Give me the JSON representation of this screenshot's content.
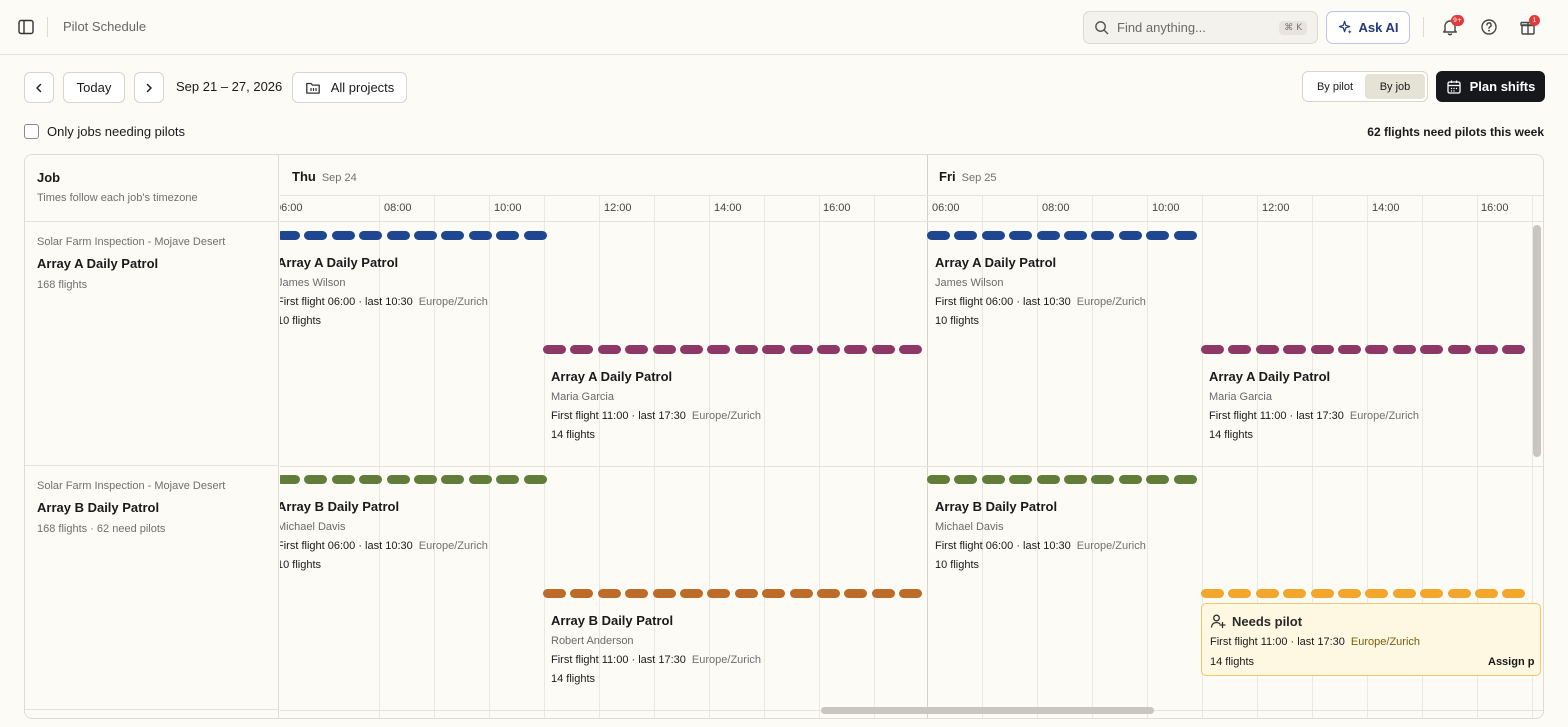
{
  "header": {
    "app_title": "Pilot Schedule",
    "search_placeholder": "Find anything...",
    "search_shortcut": "⌘ K",
    "ask_ai_label": "Ask AI",
    "notifications_badge": "9+",
    "gifts_badge": "1",
    "icons": [
      "sidebar-icon",
      "search-icon",
      "sparkle-icon",
      "bell-icon",
      "help-icon",
      "gift-icon"
    ]
  },
  "toolbar": {
    "today_label": "Today",
    "date_range": "Sep 21 – 27, 2026",
    "projects_label": "All projects",
    "view_by_pilot": "By pilot",
    "view_by_job": "By job",
    "active_view": "By job",
    "plan_shifts_label": "Plan shifts",
    "filter_label": "Only jobs needing pilots",
    "filter_checked": false,
    "need_pilots_summary": "62 flights need pilots this week"
  },
  "grid": {
    "job_column_title": "Job",
    "job_column_subtitle": "Times follow each job's timezone",
    "days": [
      {
        "name": "Thu",
        "date": "Sep 24"
      },
      {
        "name": "Fri",
        "date": "Sep 25"
      }
    ],
    "hours": [
      "06:00",
      "08:00",
      "10:00",
      "12:00",
      "14:00",
      "16:00"
    ],
    "jobs": [
      {
        "project": "Solar Farm Inspection - Mojave Desert",
        "name": "Array A Daily Patrol",
        "summary": "168 flights",
        "shifts": [
          {
            "title": "Array A Daily Patrol",
            "pilot": "James Wilson",
            "times": "First flight 06:00 · last 10:30",
            "timezone": "Europe/Zurich",
            "flights": "10 flights",
            "color": "#1f4690"
          },
          {
            "title": "Array A Daily Patrol",
            "pilot": "Maria Garcia",
            "times": "First flight 11:00 · last 17:30",
            "timezone": "Europe/Zurich",
            "flights": "14 flights",
            "color": "#8e3867"
          },
          {
            "title": "Array A Daily Patrol",
            "pilot": "James Wilson",
            "times": "First flight 06:00 · last 10:30",
            "timezone": "Europe/Zurich",
            "flights": "10 flights",
            "color": "#1f4690"
          },
          {
            "title": "Array A Daily Patrol",
            "pilot": "Maria Garcia",
            "times": "First flight 11:00 · last 17:30",
            "timezone": "Europe/Zurich",
            "flights": "14 flights",
            "color": "#8e3867"
          }
        ]
      },
      {
        "project": "Solar Farm Inspection - Mojave Desert",
        "name": "Array B Daily Patrol",
        "summary": "168 flights · 62 need pilots",
        "shifts": [
          {
            "title": "Array B Daily Patrol",
            "pilot": "Michael Davis",
            "times": "First flight 06:00 · last 10:30",
            "timezone": "Europe/Zurich",
            "flights": "10 flights",
            "color": "#627c39"
          },
          {
            "title": "Array B Daily Patrol",
            "pilot": "Robert Anderson",
            "times": "First flight 11:00 · last 17:30",
            "timezone": "Europe/Zurich",
            "flights": "14 flights",
            "color": "#bd6b29"
          },
          {
            "title": "Array B Daily Patrol",
            "pilot": "Michael Davis",
            "times": "First flight 06:00 · last 10:30",
            "timezone": "Europe/Zurich",
            "flights": "10 flights",
            "color": "#627c39"
          }
        ],
        "unassigned": {
          "label": "Needs pilot",
          "times": "First flight 11:00 · last 17:30",
          "timezone": "Europe/Zurich",
          "flights": "14 flights",
          "action": "Assign p",
          "color": "#f2a62c"
        }
      }
    ]
  }
}
